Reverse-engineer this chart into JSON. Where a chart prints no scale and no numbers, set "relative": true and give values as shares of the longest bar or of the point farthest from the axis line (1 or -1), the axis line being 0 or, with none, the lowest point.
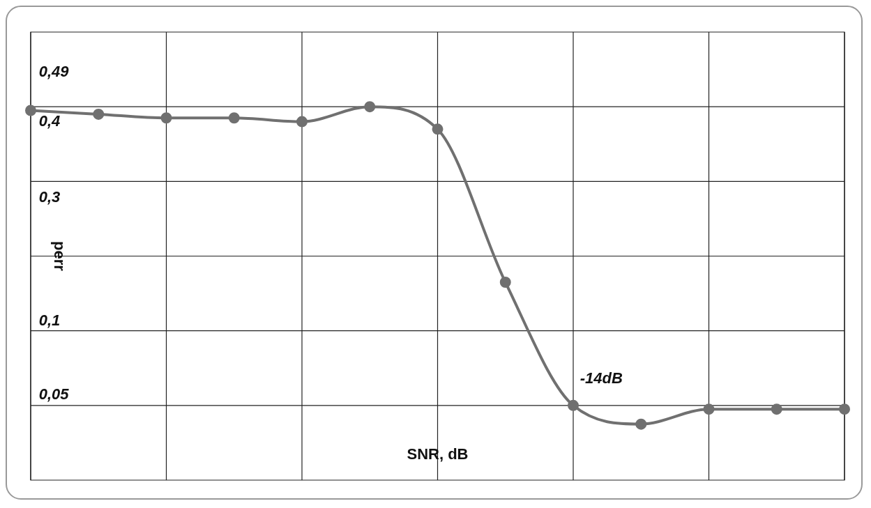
{
  "chart_data": {
    "type": "line",
    "xlabel": "SNR, dB",
    "ylabel": "perr",
    "relative": true,
    "grid": true,
    "marker": "circle",
    "line_style": "solid",
    "categories": [
      null,
      null,
      null,
      null,
      null,
      null,
      null,
      null,
      null,
      null,
      null,
      null,
      null
    ],
    "series": [
      {
        "color": "#707070",
        "values": [
          0.99,
          0.98,
          0.97,
          0.97,
          0.96,
          1,
          0.94,
          0.53,
          0.2,
          0.15,
          0.19,
          0.19,
          0.19
        ]
      }
    ],
    "annotations": [
      "0,49",
      "0,4",
      "0,3",
      "0,1",
      "0,05",
      "-14dB"
    ]
  }
}
